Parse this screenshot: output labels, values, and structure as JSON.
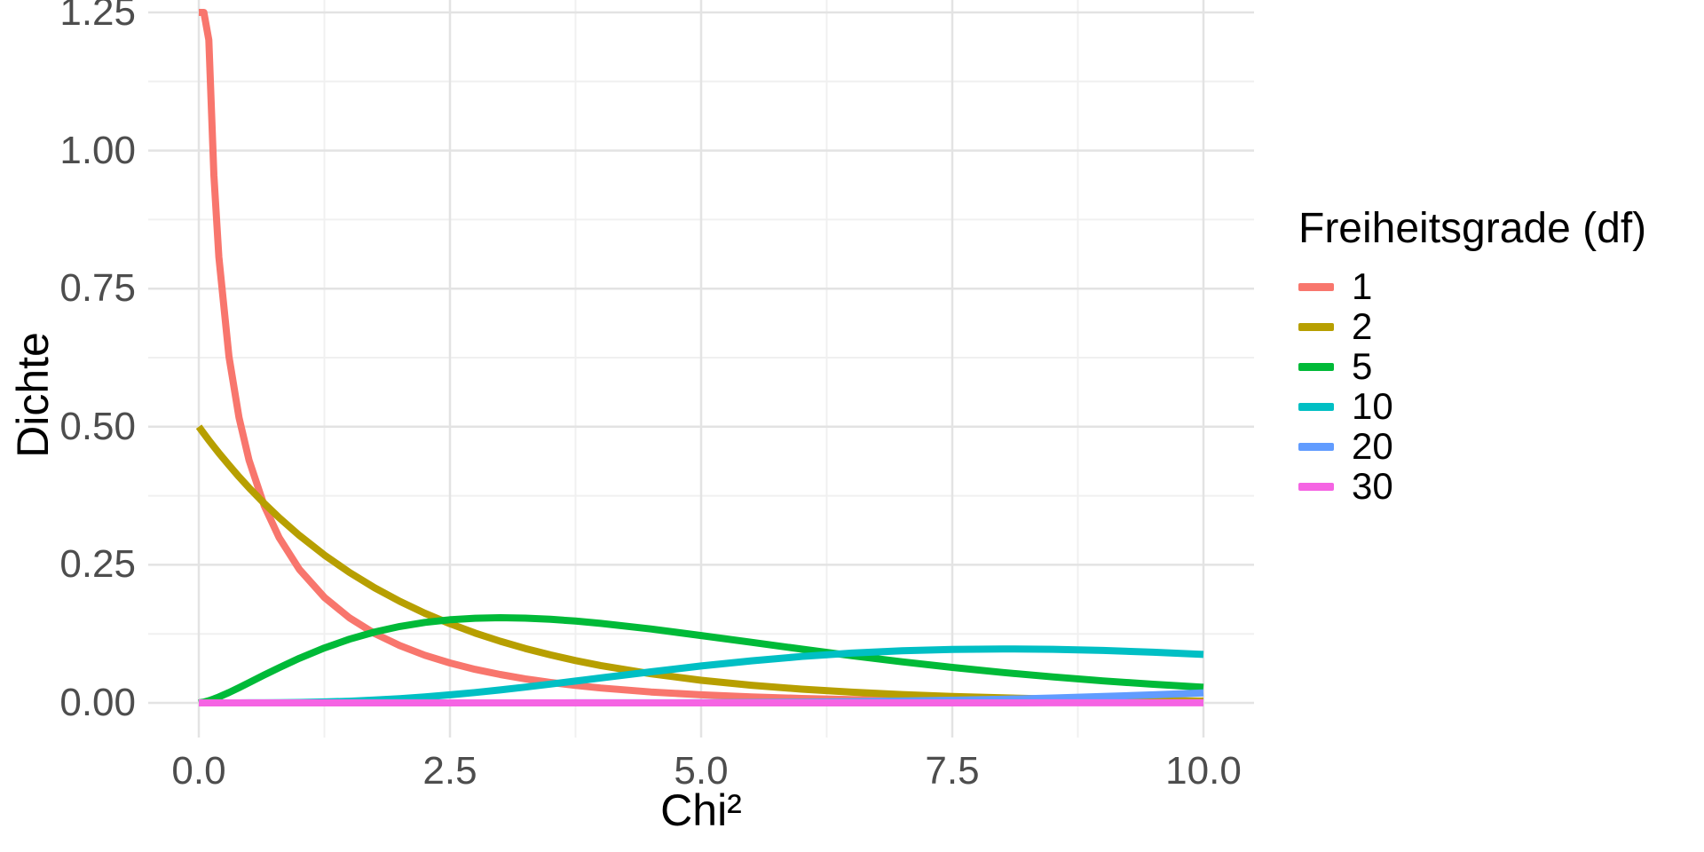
{
  "chart_data": {
    "type": "line",
    "title": "",
    "xlabel": "Chi²",
    "ylabel": "Dichte",
    "xlim": [
      0,
      10
    ],
    "ylim": [
      0,
      1.25
    ],
    "x_ticks": [
      "0.0",
      "2.5",
      "5.0",
      "7.5",
      "10.0"
    ],
    "x_tick_values": [
      0,
      2.5,
      5,
      7.5,
      10
    ],
    "y_ticks": [
      "0.00",
      "0.25",
      "0.50",
      "0.75",
      "1.00",
      "1.25"
    ],
    "y_tick_values": [
      0,
      0.25,
      0.5,
      0.75,
      1,
      1.25
    ],
    "grid": {
      "on": true,
      "major_color": "#e3e3e3",
      "minor_color": "#f0f0f0",
      "x_minor": [
        1.25,
        3.75,
        6.25,
        8.75
      ],
      "y_minor": [
        0.125,
        0.375,
        0.625,
        0.875,
        1.125
      ]
    },
    "legend": {
      "title": "Freiheitsgrade (df)",
      "position": "right"
    },
    "x": [
      0,
      0.05,
      0.1,
      0.15,
      0.2,
      0.3,
      0.4,
      0.5,
      0.65,
      0.8,
      1,
      1.25,
      1.5,
      1.75,
      2,
      2.25,
      2.5,
      2.75,
      3,
      3.25,
      3.5,
      3.75,
      4,
      4.5,
      5,
      5.5,
      6,
      6.5,
      7,
      7.5,
      8,
      8.5,
      9,
      9.5,
      10
    ],
    "series": [
      {
        "label": "1",
        "df": 1,
        "color": "#F8766D",
        "values": [
          1.25,
          1.25,
          1.2,
          0.9556,
          0.8072,
          0.6269,
          0.5165,
          0.4394,
          0.3575,
          0.299,
          0.242,
          0.191,
          0.1539,
          0.1257,
          0.1038,
          0.0863,
          0.0723,
          0.0608,
          0.0514,
          0.0436,
          0.0371,
          0.0316,
          0.027,
          0.0198,
          0.0146,
          0.0109,
          0.0081,
          0.0061,
          0.0046,
          0.0034,
          0.0026,
          0.002,
          0.0015,
          0.0011,
          0.0009
        ]
      },
      {
        "label": "2",
        "df": 2,
        "color": "#B79F00",
        "values": [
          0.5,
          0.4877,
          0.4756,
          0.4639,
          0.4524,
          0.4304,
          0.4094,
          0.3894,
          0.3613,
          0.3352,
          0.3033,
          0.2676,
          0.2362,
          0.2084,
          0.1839,
          0.1623,
          0.1433,
          0.1264,
          0.1116,
          0.0985,
          0.0869,
          0.0767,
          0.0677,
          0.0527,
          0.041,
          0.032,
          0.0249,
          0.0194,
          0.0151,
          0.0118,
          0.0092,
          0.0071,
          0.0056,
          0.0043,
          0.0034
        ]
      },
      {
        "label": "5",
        "df": 5,
        "color": "#00BA38",
        "values": [
          0,
          0.0015,
          0.004,
          0.0072,
          0.0108,
          0.0188,
          0.0275,
          0.0366,
          0.0504,
          0.0638,
          0.0807,
          0.0995,
          0.1154,
          0.1283,
          0.1384,
          0.1457,
          0.1506,
          0.1533,
          0.1542,
          0.1534,
          0.1513,
          0.1481,
          0.144,
          0.1338,
          0.122,
          0.1097,
          0.0973,
          0.0855,
          0.0744,
          0.0642,
          0.0551,
          0.047,
          0.0399,
          0.0337,
          0.0283
        ]
      },
      {
        "label": "10",
        "df": 10,
        "color": "#00BFC4",
        "values": [
          0,
          0,
          0,
          0,
          0,
          0,
          0,
          0.0001,
          0.0002,
          0.0004,
          0.0008,
          0.0017,
          0.0031,
          0.0051,
          0.0077,
          0.0108,
          0.0146,
          0.0188,
          0.0235,
          0.0286,
          0.034,
          0.0395,
          0.0451,
          0.0563,
          0.0668,
          0.0762,
          0.084,
          0.0901,
          0.0944,
          0.0969,
          0.0977,
          0.097,
          0.0949,
          0.0918,
          0.0877
        ]
      },
      {
        "label": "20",
        "df": 20,
        "color": "#619CFF",
        "values": [
          0,
          0,
          0,
          0,
          0,
          0,
          0,
          0,
          0,
          0,
          0,
          0,
          0,
          0,
          0,
          0,
          0,
          0,
          0,
          0,
          0,
          0.0001,
          0.0001,
          0.0002,
          0.0004,
          0.0008,
          0.0013,
          0.0022,
          0.0033,
          0.0048,
          0.0066,
          0.0089,
          0.0116,
          0.0147,
          0.0181
        ]
      },
      {
        "label": "30",
        "df": 30,
        "color": "#F564E3",
        "values": [
          0,
          0,
          0,
          0,
          0,
          0,
          0,
          0,
          0,
          0,
          0,
          0,
          0,
          0,
          0,
          0,
          0,
          0,
          0,
          0,
          0,
          0,
          0,
          0,
          0,
          0,
          0,
          0,
          0,
          0,
          0,
          0.0001,
          0.0001,
          0.0001,
          0.0002
        ]
      }
    ]
  },
  "colors": {
    "background": "#ffffff",
    "tick_label": "#4d4d4d",
    "axis_title": "#000000"
  }
}
